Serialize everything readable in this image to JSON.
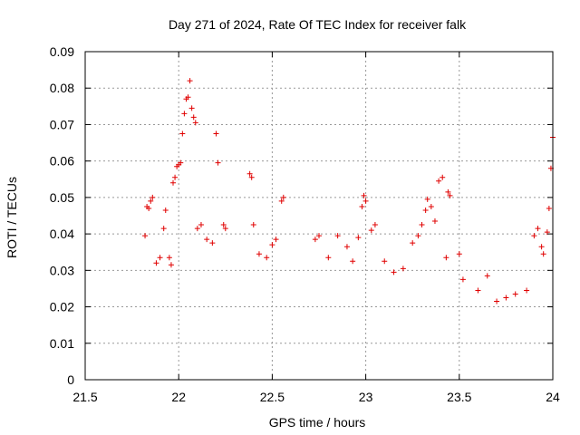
{
  "chart_data": {
    "type": "scatter",
    "title": "Day 271 of 2024, Rate Of TEC Index for receiver falk",
    "xlabel": "GPS time / hours",
    "ylabel": "ROTI / TECUs",
    "xlim": [
      21.5,
      24
    ],
    "ylim": [
      0,
      0.09
    ],
    "grid": true,
    "x_ticks": [
      "21.5",
      "22",
      "22.5",
      "23",
      "23.5",
      "24"
    ],
    "y_ticks": [
      "0",
      "0.01",
      "0.02",
      "0.03",
      "0.04",
      "0.05",
      "0.06",
      "0.07",
      "0.08",
      "0.09"
    ],
    "marker": "+",
    "marker_color": "#e00000",
    "series": [
      {
        "name": "ROTI",
        "points": [
          [
            21.82,
            0.0395
          ],
          [
            21.83,
            0.0475
          ],
          [
            21.84,
            0.047
          ],
          [
            21.85,
            0.049
          ],
          [
            21.86,
            0.05
          ],
          [
            21.88,
            0.032
          ],
          [
            21.9,
            0.0335
          ],
          [
            21.92,
            0.0415
          ],
          [
            21.93,
            0.0465
          ],
          [
            21.95,
            0.0335
          ],
          [
            21.96,
            0.0315
          ],
          [
            21.97,
            0.054
          ],
          [
            21.98,
            0.0555
          ],
          [
            21.99,
            0.0585
          ],
          [
            22.0,
            0.059
          ],
          [
            22.01,
            0.0595
          ],
          [
            22.02,
            0.0675
          ],
          [
            22.03,
            0.073
          ],
          [
            22.04,
            0.077
          ],
          [
            22.05,
            0.0775
          ],
          [
            22.06,
            0.082
          ],
          [
            22.07,
            0.0745
          ],
          [
            22.08,
            0.072
          ],
          [
            22.09,
            0.0705
          ],
          [
            22.1,
            0.0415
          ],
          [
            22.12,
            0.0425
          ],
          [
            22.15,
            0.0385
          ],
          [
            22.18,
            0.0375
          ],
          [
            22.2,
            0.0675
          ],
          [
            22.21,
            0.0595
          ],
          [
            22.24,
            0.0425
          ],
          [
            22.25,
            0.0415
          ],
          [
            22.38,
            0.0565
          ],
          [
            22.39,
            0.0555
          ],
          [
            22.4,
            0.0425
          ],
          [
            22.43,
            0.0345
          ],
          [
            22.47,
            0.0335
          ],
          [
            22.5,
            0.037
          ],
          [
            22.52,
            0.0385
          ],
          [
            22.55,
            0.049
          ],
          [
            22.56,
            0.05
          ],
          [
            22.73,
            0.0385
          ],
          [
            22.75,
            0.0395
          ],
          [
            22.8,
            0.0335
          ],
          [
            22.85,
            0.0395
          ],
          [
            22.9,
            0.0365
          ],
          [
            22.93,
            0.0325
          ],
          [
            22.96,
            0.039
          ],
          [
            22.98,
            0.0475
          ],
          [
            22.99,
            0.0505
          ],
          [
            23.0,
            0.049
          ],
          [
            23.03,
            0.041
          ],
          [
            23.05,
            0.0425
          ],
          [
            23.1,
            0.0325
          ],
          [
            23.15,
            0.0295
          ],
          [
            23.2,
            0.0305
          ],
          [
            23.25,
            0.0375
          ],
          [
            23.28,
            0.0395
          ],
          [
            23.3,
            0.0425
          ],
          [
            23.32,
            0.0465
          ],
          [
            23.33,
            0.0495
          ],
          [
            23.35,
            0.0475
          ],
          [
            23.37,
            0.0435
          ],
          [
            23.39,
            0.0545
          ],
          [
            23.41,
            0.0555
          ],
          [
            23.43,
            0.0335
          ],
          [
            23.44,
            0.0515
          ],
          [
            23.45,
            0.0505
          ],
          [
            23.5,
            0.0345
          ],
          [
            23.52,
            0.0275
          ],
          [
            23.6,
            0.0245
          ],
          [
            23.65,
            0.0285
          ],
          [
            23.7,
            0.0215
          ],
          [
            23.75,
            0.0225
          ],
          [
            23.8,
            0.0235
          ],
          [
            23.86,
            0.0245
          ],
          [
            23.9,
            0.0395
          ],
          [
            23.92,
            0.0415
          ],
          [
            23.94,
            0.0365
          ],
          [
            23.95,
            0.0345
          ],
          [
            23.97,
            0.0405
          ],
          [
            23.98,
            0.047
          ],
          [
            23.99,
            0.058
          ],
          [
            24.0,
            0.0665
          ]
        ]
      }
    ]
  }
}
